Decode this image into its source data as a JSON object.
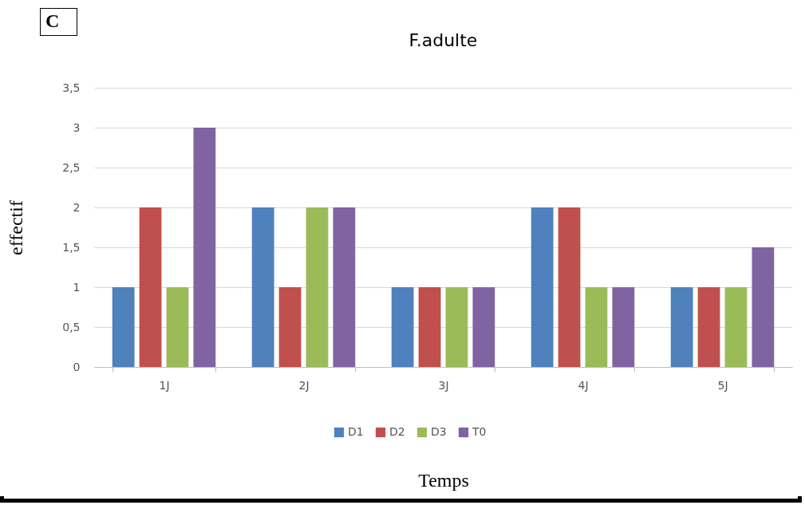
{
  "chart_data": {
    "type": "bar",
    "title": "F.adulte",
    "xlabel": "Temps",
    "ylabel": "effectif",
    "categories": [
      "1J",
      "2J",
      "3J",
      "4J",
      "5J"
    ],
    "series": [
      {
        "name": "D1",
        "color": "#4f81bd",
        "values": [
          1,
          2,
          1,
          2,
          1
        ]
      },
      {
        "name": "D2",
        "color": "#c0504d",
        "values": [
          2,
          1,
          1,
          2,
          1
        ]
      },
      {
        "name": "D3",
        "color": "#9bbb59",
        "values": [
          1,
          2,
          1,
          1,
          1
        ]
      },
      {
        "name": "T0",
        "color": "#8064a2",
        "values": [
          3,
          2,
          1,
          1,
          1.5
        ]
      }
    ],
    "ylim": [
      0,
      3.5
    ],
    "yticks": [
      0,
      {
        "value": 0.5,
        "label": "0,5"
      },
      1,
      {
        "value": 1.5,
        "label": "1,5"
      },
      2,
      {
        "value": 2.5,
        "label": "2,5"
      },
      3,
      {
        "value": 3.5,
        "label": "3,5"
      }
    ],
    "grid": "y",
    "legend": "bottom",
    "annotations": [
      "C"
    ]
  }
}
